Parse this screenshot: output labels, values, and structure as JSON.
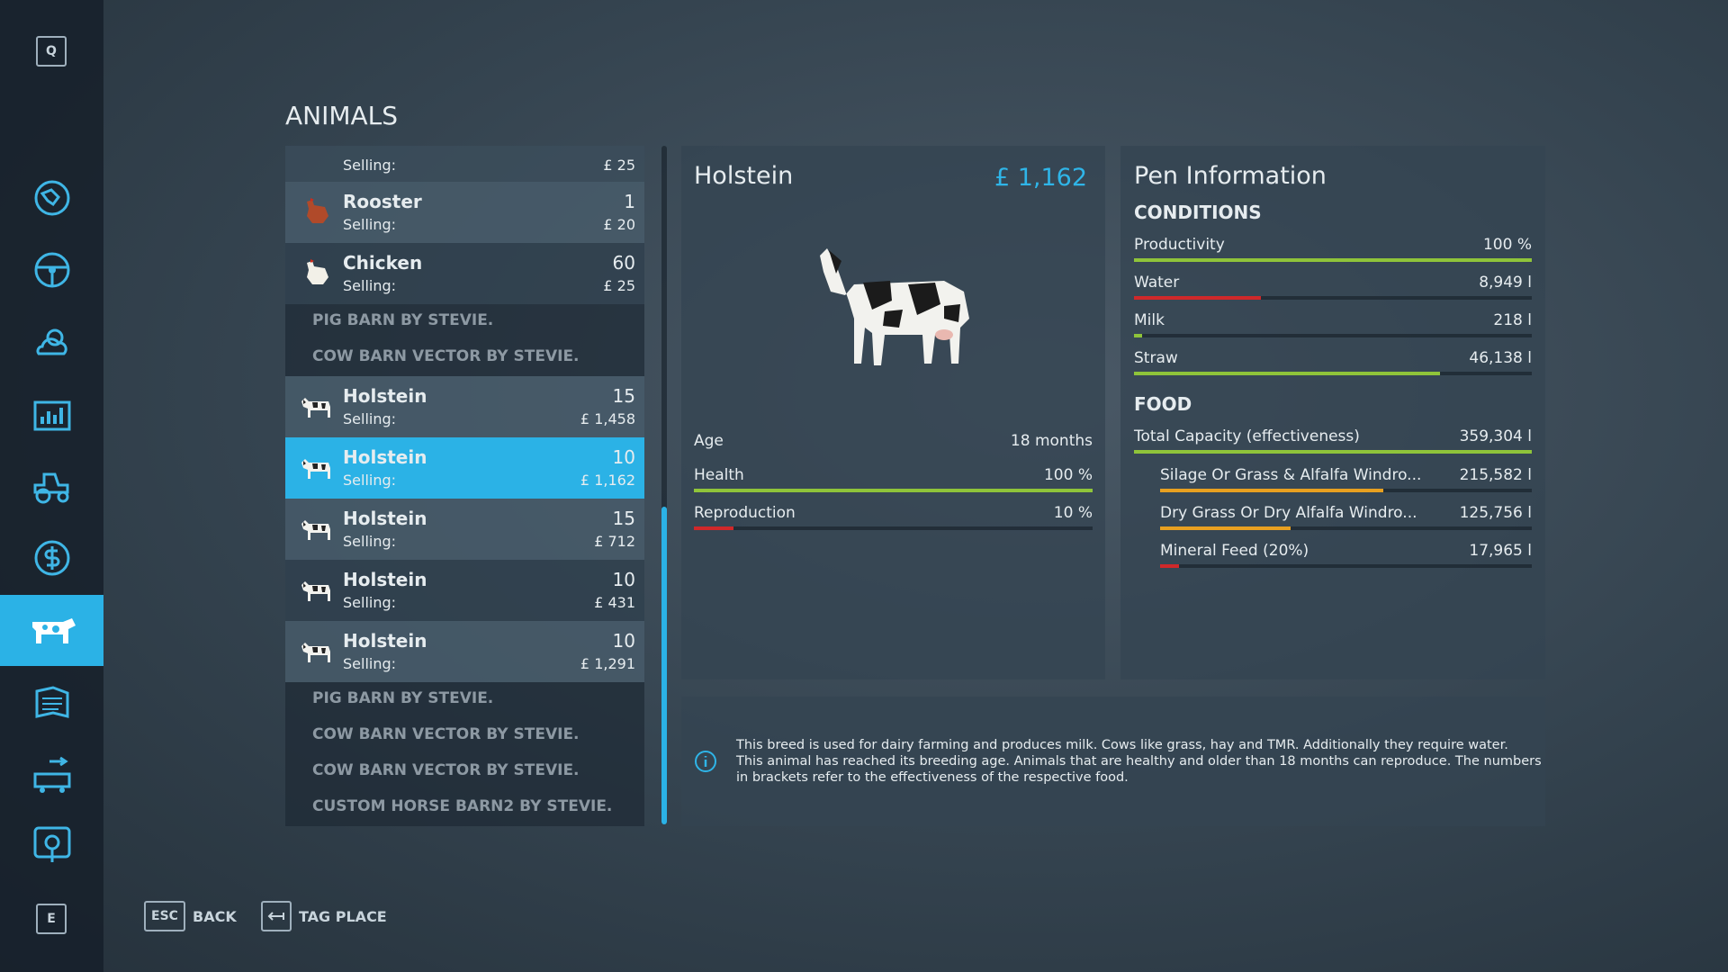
{
  "sidebar": {
    "top_key": "Q",
    "bottom_key": "E"
  },
  "title": "ANIMALS",
  "list": [
    {
      "selling_label": "Selling:",
      "price": "£ 25"
    },
    {
      "name": "Rooster",
      "count": 1,
      "selling_label": "Selling:",
      "price": "£ 20"
    },
    {
      "name": "Chicken",
      "count": 60,
      "selling_label": "Selling:",
      "price": "£ 25"
    },
    {
      "header": "PIG BARN BY STEVIE."
    },
    {
      "header": "COW BARN VECTOR BY STEVIE."
    },
    {
      "name": "Holstein",
      "count": 15,
      "selling_label": "Selling:",
      "price": "£ 1,458"
    },
    {
      "name": "Holstein",
      "count": 10,
      "selling_label": "Selling:",
      "price": "£ 1,162",
      "selected": true
    },
    {
      "name": "Holstein",
      "count": 15,
      "selling_label": "Selling:",
      "price": "£ 712"
    },
    {
      "name": "Holstein",
      "count": 10,
      "selling_label": "Selling:",
      "price": "£ 431"
    },
    {
      "name": "Holstein",
      "count": 10,
      "selling_label": "Selling:",
      "price": "£ 1,291"
    },
    {
      "header": "PIG BARN BY STEVIE."
    },
    {
      "header": "COW BARN VECTOR BY STEVIE."
    },
    {
      "header": "COW BARN VECTOR BY STEVIE."
    },
    {
      "header": "CUSTOM HORSE BARN2 BY STEVIE."
    }
  ],
  "detail": {
    "name": "Holstein",
    "price": "£ 1,162",
    "stats": [
      {
        "label": "Age",
        "value": "18 months"
      },
      {
        "label": "Health",
        "value": "100 %",
        "fill": 100,
        "color": "#8fc43a"
      },
      {
        "label": "Reproduction",
        "value": "10 %",
        "fill": 10,
        "color": "#d0282a"
      }
    ]
  },
  "pen": {
    "title": "Pen Information",
    "conditions": {
      "heading": "CONDITIONS",
      "items": [
        {
          "label": "Productivity",
          "value": "100 %",
          "fill": 100,
          "color": "#8fc43a"
        },
        {
          "label": "Water",
          "value": "8,949 l",
          "fill": 32,
          "color": "#d0282a"
        },
        {
          "label": "Milk",
          "value": "218 l",
          "fill": 2,
          "color": "#8fc43a"
        },
        {
          "label": "Straw",
          "value": "46,138 l",
          "fill": 77,
          "color": "#8fc43a"
        }
      ]
    },
    "food": {
      "heading": "FOOD",
      "items": [
        {
          "label": "Total Capacity (effectiveness)",
          "value": "359,304 l",
          "fill": 100,
          "color": "#8fc43a"
        },
        {
          "label": "Silage Or Grass & Alfalfa Windro...",
          "value": "215,582 l",
          "fill": 60,
          "color": "#e8a020",
          "indent": true
        },
        {
          "label": "Dry Grass Or Dry Alfalfa Windro...",
          "value": "125,756 l",
          "fill": 35,
          "color": "#e8a020",
          "indent": true
        },
        {
          "label": "Mineral Feed (20%)",
          "value": "17,965 l",
          "fill": 5,
          "color": "#d0282a",
          "indent": true
        }
      ]
    }
  },
  "info": {
    "lines": [
      "This breed is used for dairy farming and produces milk. Cows like grass, hay and TMR. Additionally they require water.",
      "This animal has reached its breeding age. Animals that are healthy and older than 18 months can reproduce. The numbers",
      "in brackets refer to the effectiveness of the respective food."
    ]
  },
  "buttons": [
    {
      "key": "ESC",
      "label": "BACK"
    },
    {
      "label": "TAG PLACE"
    }
  ]
}
